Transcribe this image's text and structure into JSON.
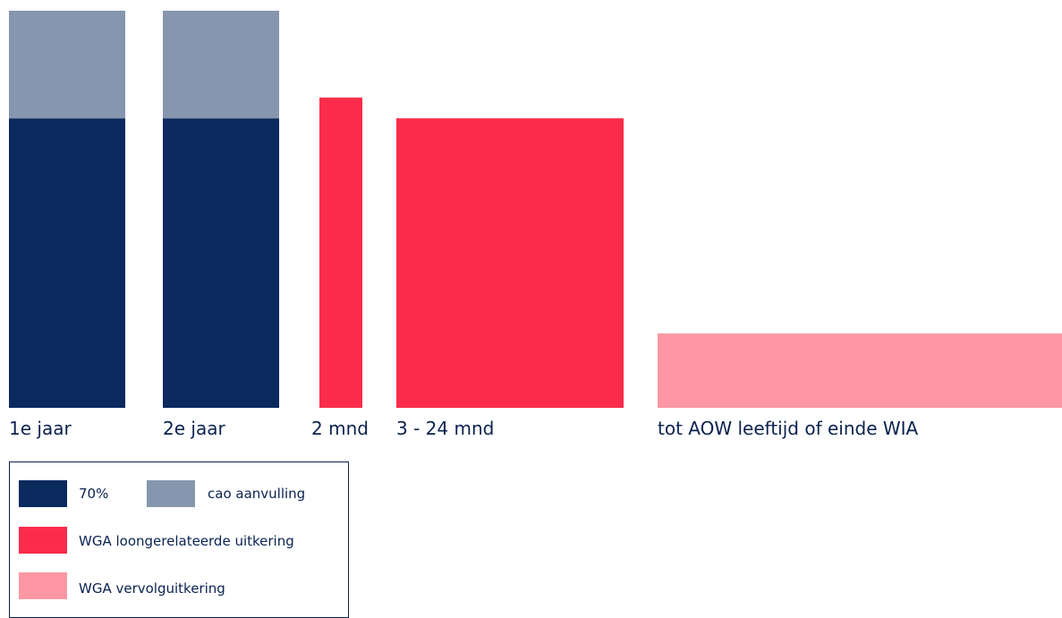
{
  "chart_data": {
    "type": "bar",
    "categories": [
      "1e jaar",
      "2e jaar",
      "2 mnd",
      "3 - 24 mnd",
      "tot AOW leeftijd of einde WIA"
    ],
    "series": [
      {
        "name": "70%",
        "color": "#0a2a5e",
        "values": [
          70,
          70,
          null,
          null,
          null
        ]
      },
      {
        "name": "cao aanvulling",
        "color": "#8696ae",
        "values": [
          26,
          26,
          null,
          null,
          null
        ]
      },
      {
        "name": "WGA loongerelateerde uitkering",
        "color": "#fb2c4b",
        "values": [
          null,
          null,
          75,
          70,
          null
        ]
      },
      {
        "name": "WGA vervolguitkering",
        "color": "#fc97a3",
        "values": [
          null,
          null,
          null,
          null,
          18
        ]
      }
    ],
    "stacked": true,
    "legend_position": "bottom-left",
    "grid": false,
    "xlabel": "",
    "ylabel": ""
  },
  "legend": {
    "items": [
      {
        "label": "70%",
        "color": "#0a2a5e"
      },
      {
        "label": "cao aanvulling",
        "color": "#8696ae"
      },
      {
        "label": "WGA loongerelateerde uitkering",
        "color": "#fb2c4b"
      },
      {
        "label": "WGA vervolguitkering",
        "color": "#fc97a3"
      }
    ]
  }
}
